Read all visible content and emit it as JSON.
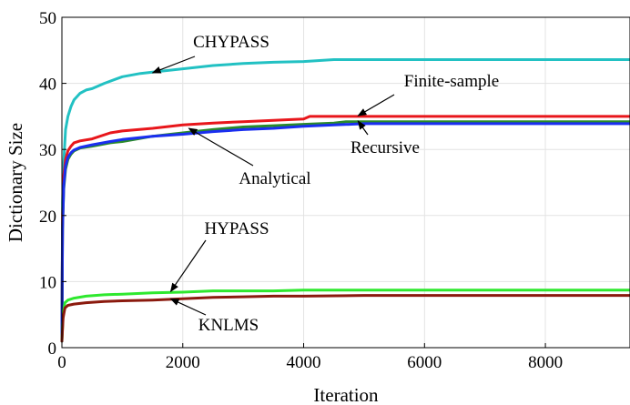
{
  "chart_data": {
    "type": "line",
    "title": "",
    "xlabel": "Iteration",
    "ylabel": "Dictionary Size",
    "xlim": [
      0,
      9400
    ],
    "ylim": [
      0,
      50
    ],
    "xticks": [
      0,
      2000,
      4000,
      6000,
      8000
    ],
    "yticks": [
      0,
      10,
      20,
      30,
      40,
      50
    ],
    "grid": true,
    "legend": "none",
    "series": [
      {
        "name": "CHYPASS",
        "color": "#22c1c3",
        "x": [
          0,
          10,
          30,
          60,
          100,
          150,
          200,
          300,
          400,
          500,
          700,
          1000,
          1300,
          1600,
          2000,
          2500,
          3000,
          3500,
          4000,
          4500,
          5000,
          6000,
          7000,
          8000,
          9400
        ],
        "y": [
          1,
          22,
          28,
          33,
          35,
          36.5,
          37.5,
          38.5,
          39,
          39.2,
          40,
          41,
          41.5,
          41.8,
          42.2,
          42.7,
          43,
          43.2,
          43.3,
          43.6,
          43.6,
          43.6,
          43.6,
          43.6,
          43.6
        ]
      },
      {
        "name": "Finite-sample",
        "color": "#e8161b",
        "x": [
          0,
          10,
          30,
          60,
          100,
          150,
          200,
          300,
          500,
          800,
          1000,
          1500,
          2000,
          2500,
          3000,
          3500,
          4000,
          4100,
          5000,
          6000,
          7000,
          8000,
          9400
        ],
        "y": [
          1,
          20,
          26,
          28.5,
          29.8,
          30.5,
          31,
          31.3,
          31.6,
          32.5,
          32.8,
          33.2,
          33.7,
          34,
          34.2,
          34.4,
          34.6,
          35,
          35,
          35,
          35,
          35,
          35
        ]
      },
      {
        "name": "Recursive",
        "color": "#2a8a2a",
        "x": [
          0,
          10,
          30,
          60,
          100,
          150,
          200,
          300,
          500,
          800,
          1000,
          1500,
          2000,
          2500,
          3000,
          3500,
          4000,
          4500,
          4700,
          5000,
          6000,
          7000,
          8000,
          9400
        ],
        "y": [
          1,
          18,
          24,
          27,
          28.5,
          29.3,
          29.8,
          30.2,
          30.5,
          31,
          31.2,
          32,
          32.5,
          33,
          33.4,
          33.6,
          33.8,
          34,
          34.2,
          34.2,
          34.2,
          34.2,
          34.2,
          34.2
        ]
      },
      {
        "name": "Analytical",
        "color": "#1a2ef0",
        "x": [
          0,
          10,
          30,
          60,
          100,
          150,
          200,
          300,
          500,
          800,
          1000,
          1500,
          2000,
          2500,
          3000,
          3500,
          4000,
          4500,
          5000,
          6000,
          7000,
          8000,
          9400
        ],
        "y": [
          1,
          18,
          24.5,
          27.5,
          28.8,
          29.5,
          29.9,
          30.3,
          30.7,
          31.2,
          31.5,
          32,
          32.3,
          32.7,
          33,
          33.2,
          33.5,
          33.7,
          33.9,
          33.9,
          33.9,
          33.9,
          33.9
        ]
      },
      {
        "name": "HYPASS",
        "color": "#2ee82e",
        "x": [
          0,
          20,
          50,
          100,
          200,
          400,
          700,
          1000,
          1500,
          2000,
          2500,
          3000,
          3500,
          4000,
          5000,
          6000,
          7000,
          8000,
          9400
        ],
        "y": [
          1,
          5,
          6.8,
          7.2,
          7.5,
          7.8,
          8,
          8.1,
          8.3,
          8.4,
          8.6,
          8.6,
          8.6,
          8.7,
          8.7,
          8.7,
          8.7,
          8.7,
          8.7
        ]
      },
      {
        "name": "KNLMS",
        "color": "#8b1a0e",
        "x": [
          0,
          20,
          50,
          100,
          200,
          400,
          700,
          1000,
          1500,
          2000,
          2500,
          3000,
          3500,
          4000,
          5000,
          6000,
          7000,
          8000,
          9400
        ],
        "y": [
          1,
          4.5,
          6,
          6.4,
          6.6,
          6.8,
          7,
          7.1,
          7.2,
          7.4,
          7.6,
          7.7,
          7.8,
          7.8,
          7.9,
          7.9,
          7.9,
          7.9,
          7.9
        ]
      }
    ],
    "annotations": [
      {
        "text": "CHYPASS",
        "tip": [
          1500,
          41.6
        ]
      },
      {
        "text": "Finite-sample",
        "tip": [
          4900,
          35.1
        ]
      },
      {
        "text": "Recursive",
        "tip": [
          4900,
          34.3
        ]
      },
      {
        "text": "Analytical",
        "tip": [
          2100,
          33.2
        ]
      },
      {
        "text": "HYPASS",
        "tip": [
          1800,
          8.5
        ]
      },
      {
        "text": "KNLMS",
        "tip": [
          1800,
          7.4
        ]
      }
    ]
  }
}
